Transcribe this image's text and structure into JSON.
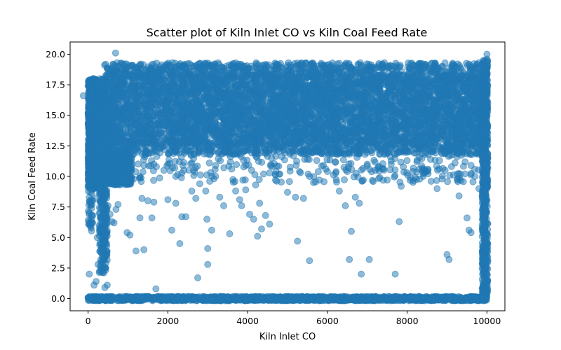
{
  "chart_data": {
    "type": "scatter",
    "title": "Scatter plot of Kiln Inlet CO vs Kiln Coal Feed Rate",
    "xlabel": "Kiln Inlet CO",
    "ylabel": "Kiln Coal Feed Rate",
    "xlim": [
      -450,
      10450
    ],
    "ylim": [
      -1.0,
      21.0
    ],
    "xticks": [
      0,
      2000,
      4000,
      6000,
      8000,
      10000
    ],
    "xtick_labels": [
      "0",
      "2000",
      "4000",
      "6000",
      "8000",
      "10000"
    ],
    "yticks": [
      0.0,
      2.5,
      5.0,
      7.5,
      10.0,
      12.5,
      15.0,
      17.5,
      20.0
    ],
    "ytick_labels": [
      "0.0",
      "2.5",
      "5.0",
      "7.5",
      "10.0",
      "12.5",
      "15.0",
      "17.5",
      "20.0"
    ],
    "grid": false,
    "marker_color": "#1f77b4",
    "marker_alpha": 0.5,
    "series": [
      {
        "points": [
          [
            -120,
            16.6
          ],
          [
            690,
            20.1
          ],
          [
            10000,
            20.0
          ],
          [
            10000,
            19.6
          ],
          [
            30,
            2.0
          ],
          [
            150,
            1.1
          ],
          [
            200,
            1.4
          ],
          [
            250,
            2.8
          ],
          [
            330,
            2.4
          ],
          [
            380,
            4.0
          ],
          [
            420,
            0.9
          ],
          [
            480,
            1.1
          ],
          [
            230,
            5.0
          ],
          [
            300,
            5.6
          ],
          [
            60,
            6.0
          ],
          [
            80,
            6.2
          ],
          [
            120,
            6.8
          ],
          [
            100,
            7.7
          ],
          [
            180,
            8.2
          ],
          [
            60,
            8.7
          ],
          [
            250,
            9.4
          ],
          [
            350,
            9.2
          ],
          [
            450,
            8.5
          ],
          [
            500,
            7.6
          ],
          [
            550,
            6.9
          ],
          [
            600,
            6.3
          ],
          [
            650,
            6.2
          ],
          [
            700,
            7.3
          ],
          [
            750,
            7.7
          ],
          [
            800,
            9.3
          ],
          [
            850,
            10.2
          ],
          [
            900,
            10.8
          ],
          [
            950,
            9.7
          ],
          [
            980,
            5.4
          ],
          [
            1050,
            5.2
          ],
          [
            1200,
            3.9
          ],
          [
            1300,
            6.6
          ],
          [
            1350,
            8.2
          ],
          [
            1400,
            4.0
          ],
          [
            1500,
            8.0
          ],
          [
            1600,
            6.6
          ],
          [
            1650,
            7.9
          ],
          [
            1700,
            0.8
          ],
          [
            1900,
            10.5
          ],
          [
            2000,
            8.1
          ],
          [
            2100,
            5.6
          ],
          [
            2200,
            7.8
          ],
          [
            2300,
            4.5
          ],
          [
            2350,
            6.7
          ],
          [
            2450,
            6.7
          ],
          [
            2600,
            8.8
          ],
          [
            2700,
            8.2
          ],
          [
            2750,
            1.7
          ],
          [
            2800,
            9.4
          ],
          [
            2950,
            8.8
          ],
          [
            2980,
            6.5
          ],
          [
            3000,
            4.1
          ],
          [
            3000,
            2.8
          ],
          [
            3050,
            9.6
          ],
          [
            3100,
            5.6
          ],
          [
            3300,
            8.3
          ],
          [
            3400,
            7.6
          ],
          [
            3550,
            5.3
          ],
          [
            3700,
            8.8
          ],
          [
            3800,
            8.1
          ],
          [
            3850,
            7.6
          ],
          [
            3950,
            8.9
          ],
          [
            4050,
            6.9
          ],
          [
            4150,
            6.5
          ],
          [
            4200,
            9.3
          ],
          [
            4250,
            5.1
          ],
          [
            4300,
            7.8
          ],
          [
            4350,
            5.7
          ],
          [
            4450,
            6.8
          ],
          [
            4550,
            6.1
          ],
          [
            4700,
            9.7
          ],
          [
            4800,
            10.2
          ],
          [
            5000,
            8.7
          ],
          [
            5200,
            8.3
          ],
          [
            5250,
            4.7
          ],
          [
            5400,
            8.2
          ],
          [
            5550,
            3.1
          ],
          [
            5650,
            9.5
          ],
          [
            5800,
            9.7
          ],
          [
            6000,
            10.4
          ],
          [
            6300,
            8.8
          ],
          [
            6450,
            7.6
          ],
          [
            6550,
            3.2
          ],
          [
            6600,
            5.5
          ],
          [
            6700,
            8.3
          ],
          [
            6800,
            7.8
          ],
          [
            6850,
            2.0
          ],
          [
            6900,
            9.7
          ],
          [
            7050,
            3.2
          ],
          [
            7200,
            10.5
          ],
          [
            7500,
            9.7
          ],
          [
            7600,
            11.0
          ],
          [
            7700,
            2.0
          ],
          [
            7800,
            6.3
          ],
          [
            7850,
            9.2
          ],
          [
            8200,
            9.9
          ],
          [
            8400,
            10.3
          ],
          [
            8600,
            9.6
          ],
          [
            8750,
            9.0
          ],
          [
            8950,
            10.5
          ],
          [
            9000,
            3.6
          ],
          [
            9050,
            3.2
          ],
          [
            9300,
            8.4
          ],
          [
            9450,
            10.2
          ],
          [
            9500,
            6.6
          ],
          [
            9550,
            5.6
          ],
          [
            9600,
            5.4
          ],
          [
            9700,
            10.0
          ],
          [
            9800,
            9.0
          ],
          [
            2000,
            11.0
          ],
          [
            2600,
            11.1
          ],
          [
            3900,
            11.3
          ],
          [
            4600,
            11.5
          ],
          [
            5500,
            11.4
          ],
          [
            6200,
            11.2
          ],
          [
            7000,
            11.0
          ],
          [
            8000,
            11.3
          ],
          [
            9200,
            11.1
          ],
          [
            600,
            10.7
          ],
          [
            700,
            10.3
          ],
          [
            400,
            10.0
          ],
          [
            300,
            9.0
          ],
          [
            1100,
            11.0
          ],
          [
            1300,
            10.0
          ],
          [
            1400,
            10.9
          ],
          [
            2200,
            10.0
          ],
          [
            2400,
            10.5
          ],
          [
            3200,
            10.9
          ],
          [
            3600,
            10.6
          ],
          [
            4100,
            10.5
          ],
          [
            4400,
            10.2
          ],
          [
            5300,
            10.4
          ],
          [
            5900,
            10.9
          ],
          [
            6500,
            10.4
          ],
          [
            7300,
            10.8
          ],
          [
            8300,
            10.6
          ],
          [
            8800,
            10.6
          ],
          [
            9600,
            10.9
          ],
          [
            9900,
            10.2
          ]
        ]
      }
    ]
  }
}
